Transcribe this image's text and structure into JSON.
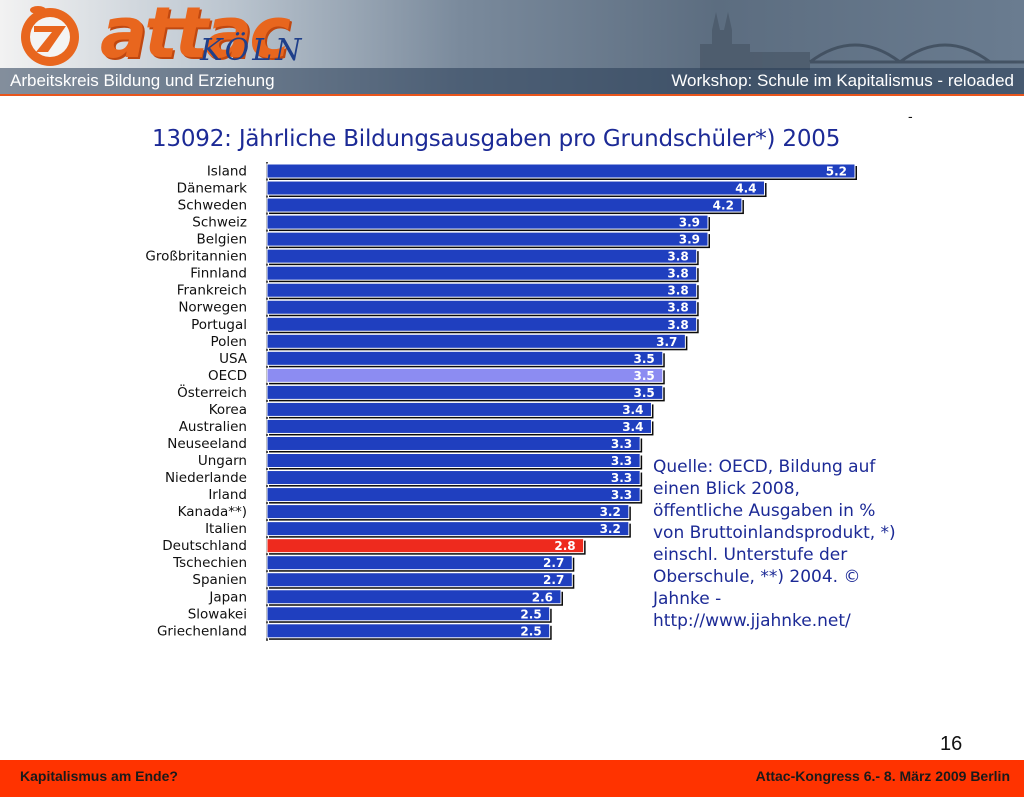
{
  "header": {
    "logo_word": "attac",
    "logo_city": "KÖLN",
    "left_text": "Arbeitskreis Bildung und Erziehung",
    "right_text": "Workshop: Schule im Kapitalismus - reloaded"
  },
  "footer": {
    "left_text": "Kapitalismus am Ende?",
    "right_text": "Attac-Kongress 6.- 8. März 2009 Berlin"
  },
  "page_number": "16",
  "dash_mark": "-",
  "source_note": {
    "lines": [
      "Quelle: OECD, Bildung auf",
      "einen Blick 2008,",
      "öffentliche Ausgaben in %",
      "von Bruttoinlandsprodukt, *)",
      "einschl. Unterstufe der",
      "Oberschule, **) 2004. ©",
      "Jahnke -",
      "http://www.jjahnke.net/"
    ]
  },
  "colors": {
    "bar": "#1f3fbf",
    "highlight_oecd": "#8c8cf2",
    "highlight_germany": "#ee2a1e",
    "title": "#1c2a96",
    "footer": "#ff3300",
    "accent": "#e8661e"
  },
  "chart_data": {
    "type": "bar",
    "orientation": "horizontal",
    "title": "13092: Jährliche Bildungsausgaben pro Grundschüler*) 2005",
    "categories": [
      "Island",
      "Dänemark",
      "Schweden",
      "Schweiz",
      "Belgien",
      "Großbritannien",
      "Finnland",
      "Frankreich",
      "Norwegen",
      "Portugal",
      "Polen",
      "USA",
      "OECD",
      "Österreich",
      "Korea",
      "Australien",
      "Neuseeland",
      "Ungarn",
      "Niederlande",
      "Irland",
      "Kanada**)",
      "Italien",
      "Deutschland",
      "Tschechien",
      "Spanien",
      "Japan",
      "Slowakei",
      "Griechenland"
    ],
    "values": [
      5.2,
      4.4,
      4.2,
      3.9,
      3.9,
      3.8,
      3.8,
      3.8,
      3.8,
      3.8,
      3.7,
      3.5,
      3.5,
      3.5,
      3.4,
      3.4,
      3.3,
      3.3,
      3.3,
      3.3,
      3.2,
      3.2,
      2.8,
      2.7,
      2.7,
      2.6,
      2.5,
      2.5
    ],
    "value_labels": [
      "5.2",
      "4.4",
      "4.2",
      "3.9",
      "3.9",
      "3.8",
      "3.8",
      "3.8",
      "3.8",
      "3.8",
      "3.7",
      "3.5",
      "3.5",
      "3.5",
      "3.4",
      "3.4",
      "3.3",
      "3.3",
      "3.3",
      "3.3",
      "3.2",
      "3.2",
      "2.8",
      "2.7",
      "2.7",
      "2.6",
      "2.5",
      "2.5"
    ],
    "highlighted": {
      "OECD": "highlight_oecd",
      "Deutschland": "highlight_germany"
    },
    "xlim": [
      0,
      5.2
    ],
    "grid": false,
    "legend": "none"
  }
}
